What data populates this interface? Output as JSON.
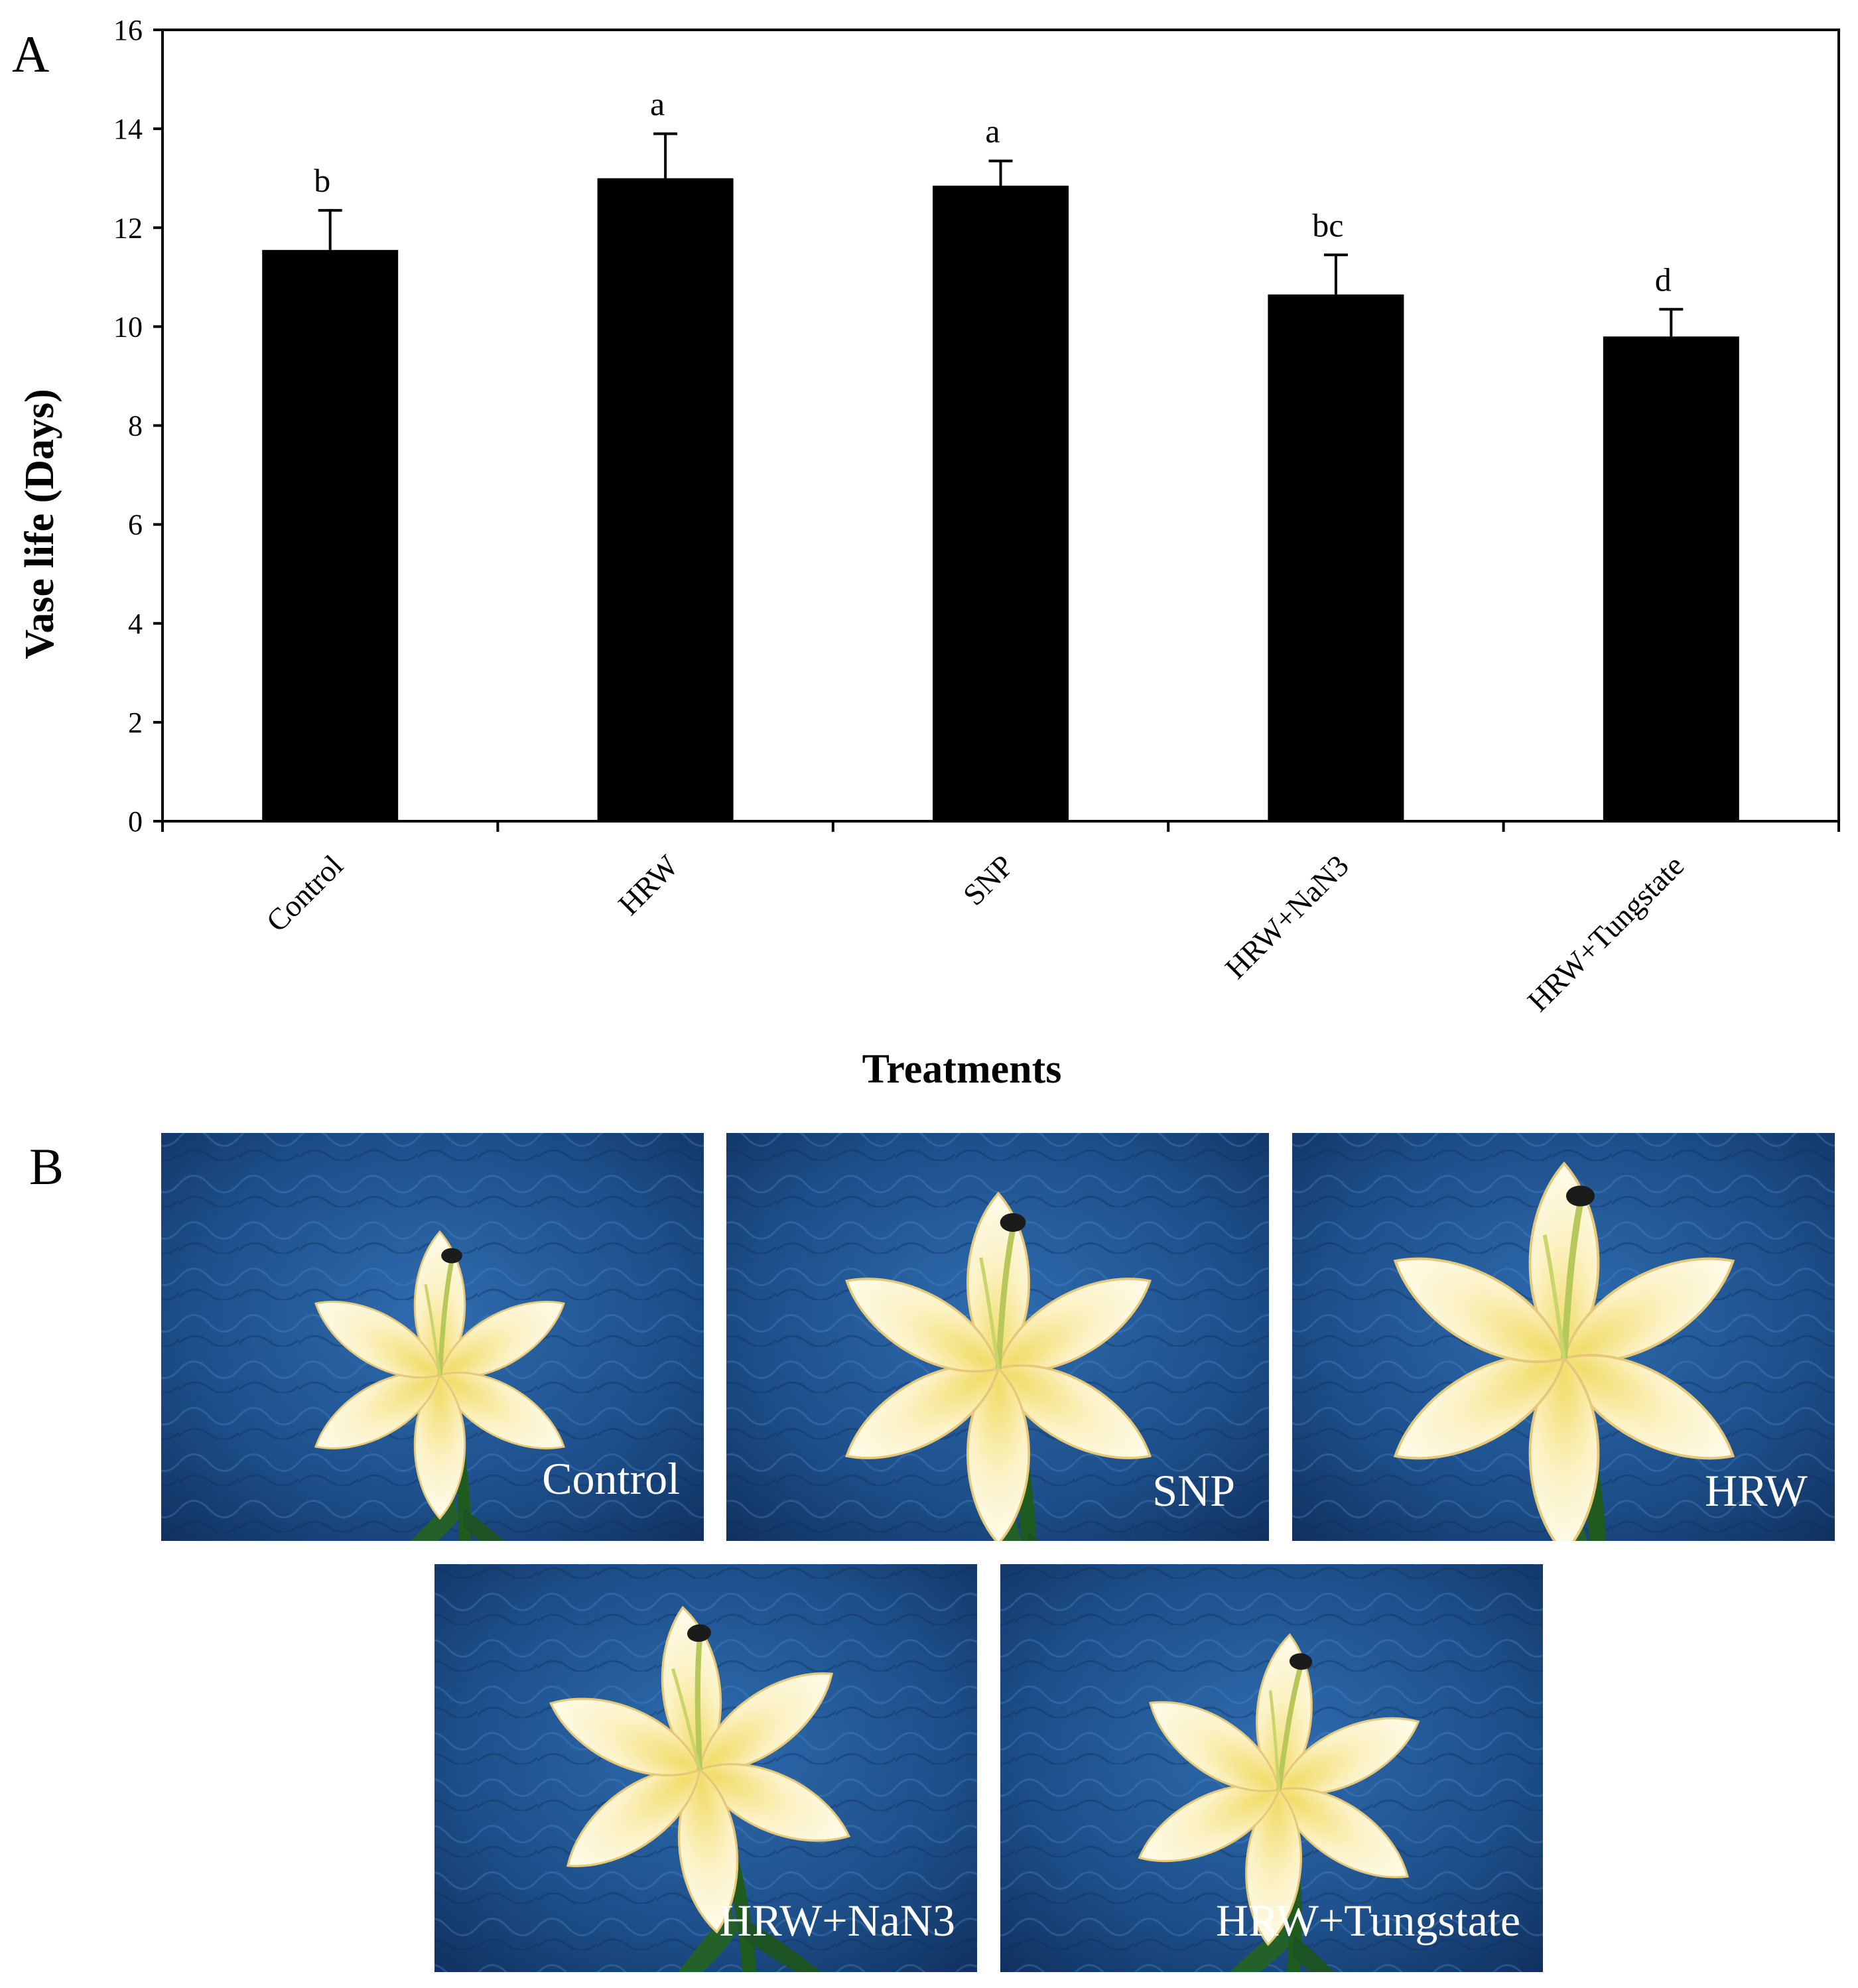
{
  "panel_a_label": "A",
  "panel_b_label": "B",
  "chart_data": {
    "type": "bar",
    "title": "",
    "xlabel": "Treatments",
    "ylabel": "Vase life (Days)",
    "ylim": [
      0,
      16
    ],
    "yticks": [
      0,
      2,
      4,
      6,
      8,
      10,
      12,
      14,
      16
    ],
    "categories": [
      "Control",
      "HRW",
      "SNP",
      "HRW+NaN3",
      "HRW+Tungstate"
    ],
    "series": [
      {
        "name": "Vase life",
        "values": [
          11.55,
          13.0,
          12.85,
          10.65,
          9.8
        ],
        "errors": [
          0.8,
          0.9,
          0.5,
          0.8,
          0.55
        ],
        "significance": [
          "b",
          "a",
          "a",
          "bc",
          "d"
        ]
      }
    ],
    "bar_color": "#000000",
    "grid": false,
    "legend": "none"
  },
  "photos": [
    {
      "caption": "Control"
    },
    {
      "caption": "SNP"
    },
    {
      "caption": "HRW"
    },
    {
      "caption": "HRW+NaN3"
    },
    {
      "caption": "HRW+Tungstate"
    }
  ],
  "colors": {
    "photo_background": "#1d4f8a",
    "petal": "#fbf4cf",
    "petal_center": "#f2dd6a",
    "stem": "#1f5a1f",
    "caption": "#ffffff"
  }
}
